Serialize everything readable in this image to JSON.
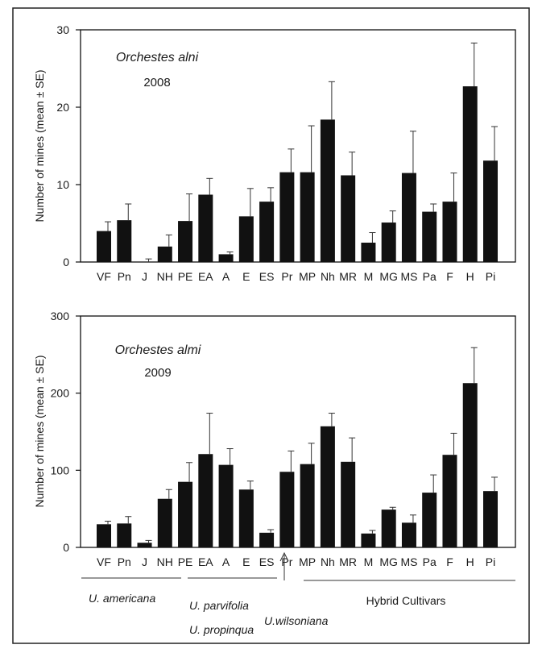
{
  "chart_data": [
    {
      "type": "bar",
      "title": "Orchestes alni",
      "subtitle": "2008",
      "ylabel": "Number of mines (mean ± SE)",
      "ylim": [
        0,
        30
      ],
      "yticks": [
        0,
        10,
        20,
        30
      ],
      "categories": [
        "VF",
        "Pn",
        "J",
        "NH",
        "PE",
        "EA",
        "A",
        "E",
        "ES",
        "Pr",
        "MP",
        "Nh",
        "MR",
        "M",
        "MG",
        "MS",
        "Pa",
        "F",
        "H",
        "Pi"
      ],
      "values": [
        4.0,
        5.4,
        0.0,
        2.0,
        5.3,
        8.7,
        1.0,
        5.9,
        7.8,
        11.6,
        11.6,
        18.4,
        11.2,
        2.5,
        5.1,
        11.5,
        6.5,
        7.8,
        22.7,
        13.1
      ],
      "errors": [
        1.2,
        2.1,
        0.4,
        1.5,
        3.5,
        2.1,
        0.3,
        3.6,
        1.8,
        3.0,
        6.0,
        4.9,
        3.0,
        1.3,
        1.5,
        5.4,
        1.0,
        3.7,
        5.6,
        4.4
      ],
      "grid": false
    },
    {
      "type": "bar",
      "title": "Orchestes almi",
      "subtitle": "2009",
      "ylabel": "Number of mines (mean ± SE)",
      "ylim": [
        0,
        300
      ],
      "yticks": [
        0,
        100,
        200,
        300
      ],
      "categories": [
        "VF",
        "Pn",
        "J",
        "NH",
        "PE",
        "EA",
        "A",
        "E",
        "ES",
        "Pr",
        "MP",
        "Nh",
        "MR",
        "M",
        "MG",
        "MS",
        "Pa",
        "F",
        "H",
        "Pi"
      ],
      "values": [
        30,
        31,
        6,
        63,
        85,
        121,
        107,
        75,
        19,
        98,
        108,
        157,
        111,
        18,
        49,
        32,
        71,
        120,
        213,
        73
      ],
      "errors": [
        4,
        9,
        3,
        12,
        25,
        53,
        21,
        11,
        4,
        27,
        27,
        17,
        31,
        4,
        3,
        10,
        23,
        28,
        46,
        18
      ],
      "grid": false
    }
  ],
  "groups": [
    {
      "label": "U. americana"
    },
    {
      "label": "U. parvifolia"
    },
    {
      "label": "U. propinqua"
    },
    {
      "label": "U.wilsoniana"
    },
    {
      "label": "Hybrid Cultivars"
    }
  ]
}
